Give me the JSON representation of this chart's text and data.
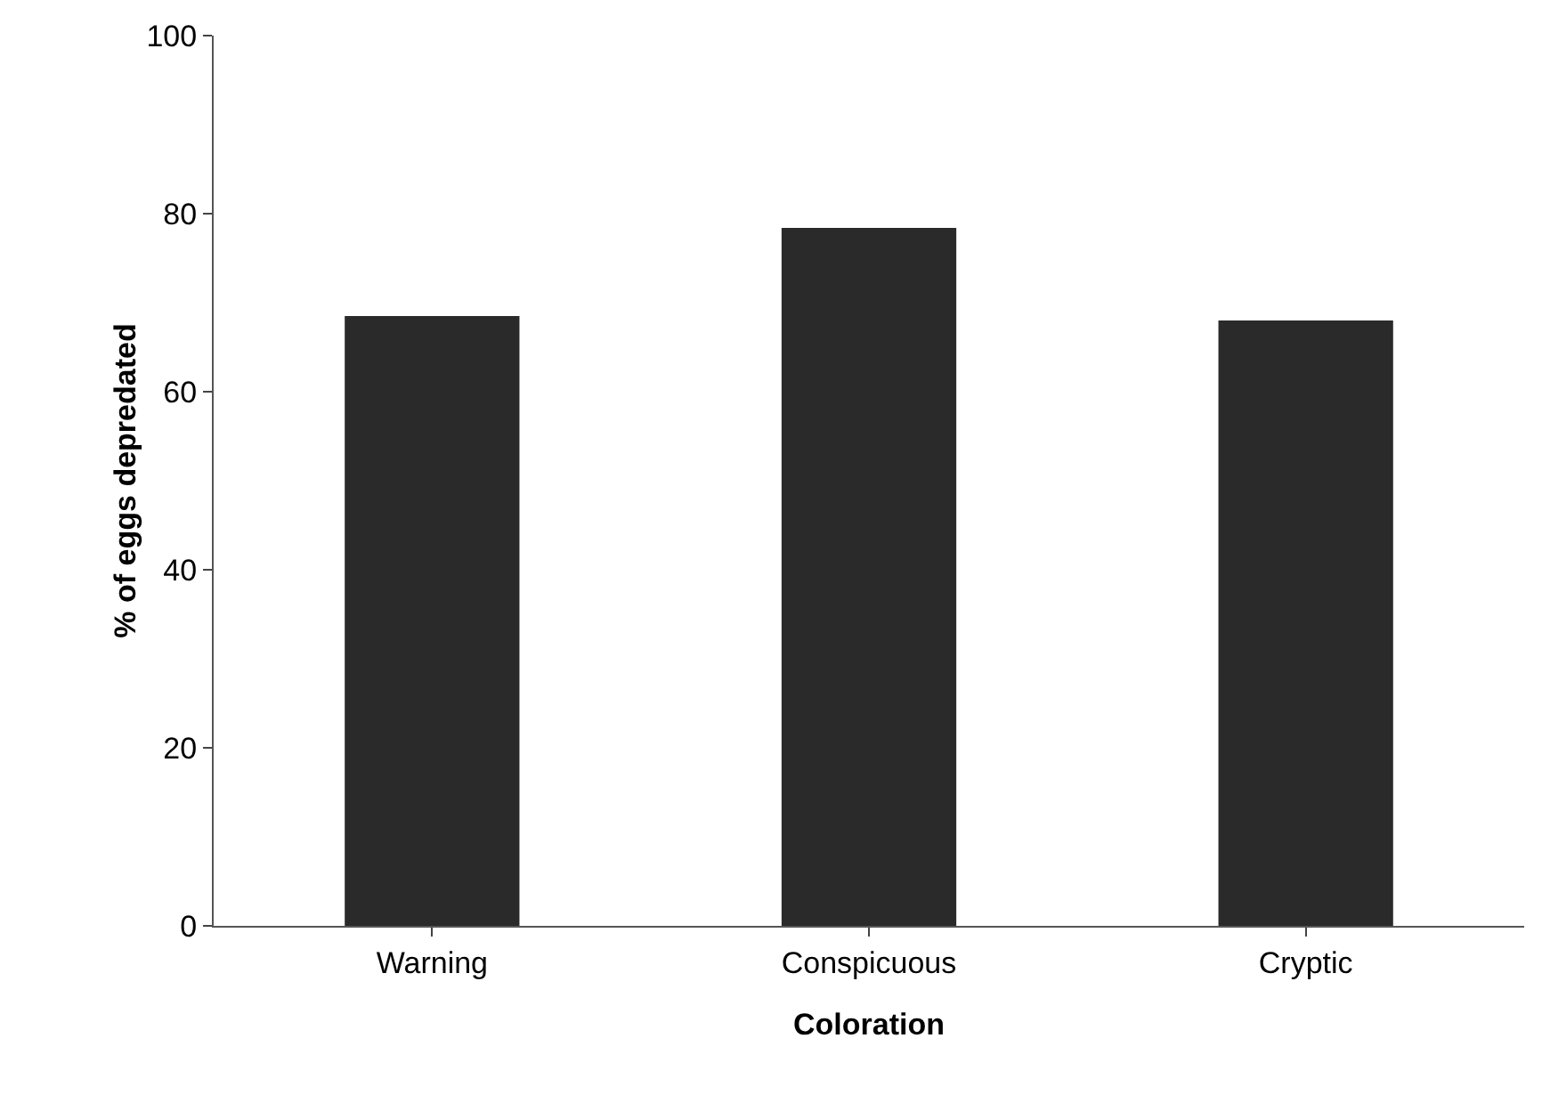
{
  "chart_data": {
    "type": "bar",
    "xlabel": "Coloration",
    "ylabel": "% of eggs depredated",
    "categories": [
      "Warning",
      "Conspicuous",
      "Cryptic"
    ],
    "values": [
      68.5,
      78.4,
      68
    ],
    "color": "#2a2a2a",
    "ylim": [
      0,
      100
    ],
    "yticks": [
      0,
      20,
      40,
      60,
      80,
      100
    ],
    "grid": false,
    "legend": false
  }
}
